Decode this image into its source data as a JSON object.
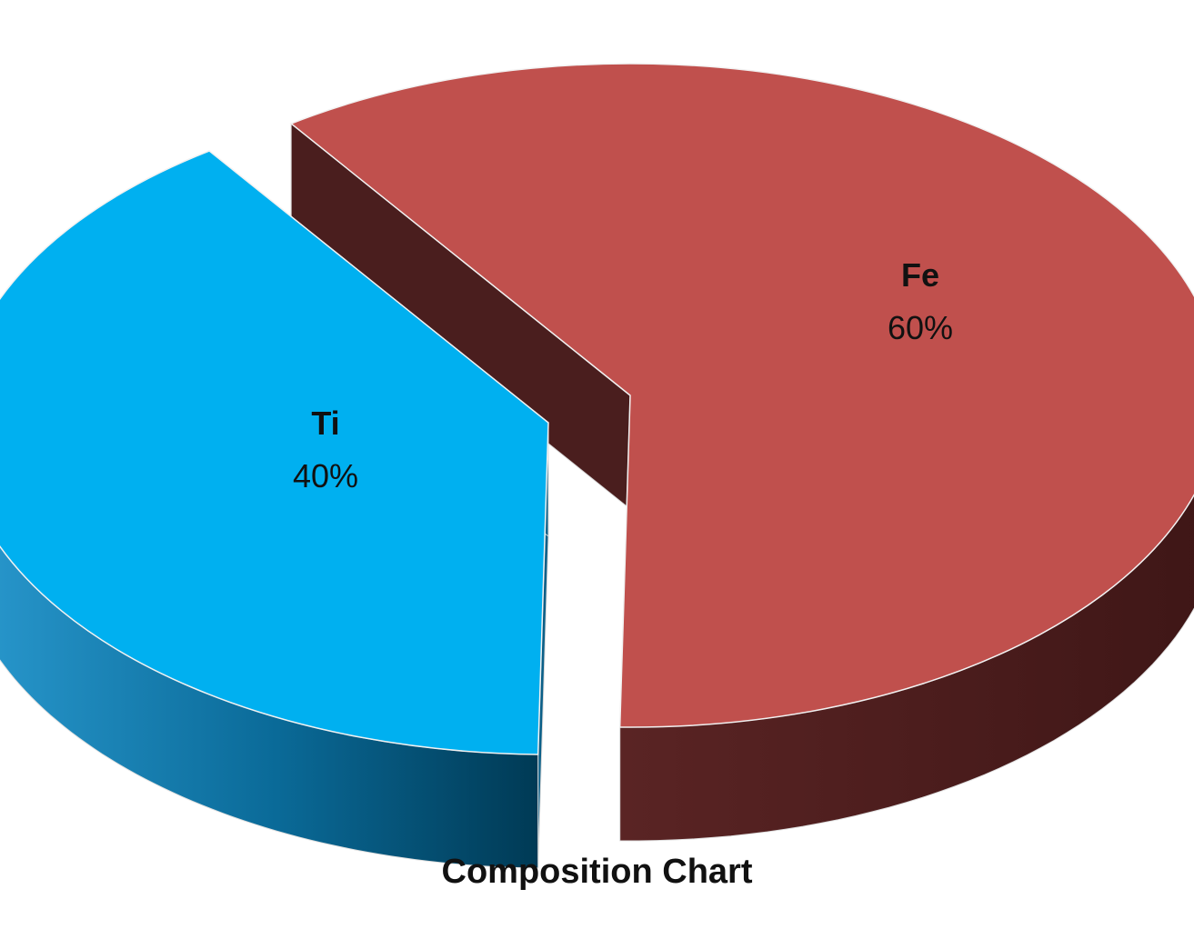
{
  "chart_data": {
    "type": "pie",
    "style": "3d-exploded",
    "title": "Composition Chart",
    "slices": [
      {
        "label": "Fe",
        "value": 60,
        "value_label": "60%",
        "top_color": "#C0504D",
        "side_color": "#4A1E1E"
      },
      {
        "label": "Ti",
        "value": 40,
        "value_label": "40%",
        "top_color": "#00B0F0",
        "side_color_light": "#1F8AC0",
        "side_color_dark": "#003A55"
      }
    ],
    "legend": "none",
    "data_labels": "inside"
  }
}
